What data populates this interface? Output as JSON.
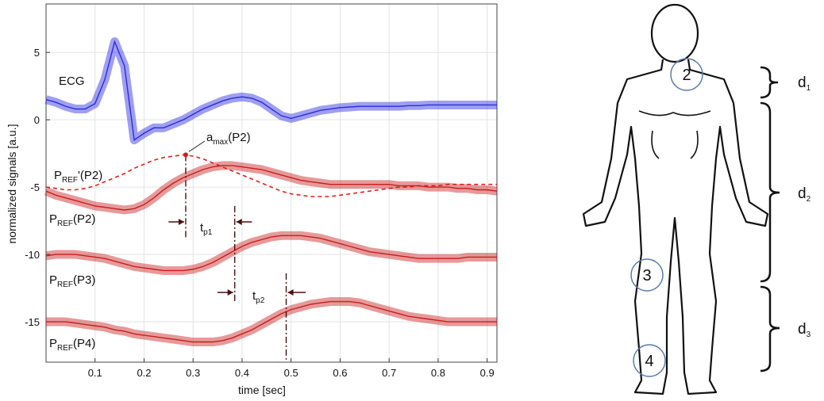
{
  "chart_data": {
    "type": "line",
    "x_label": "time [sec]",
    "y_label": "normalized signals [a.u.]",
    "x": [
      0,
      0.02,
      0.04,
      0.06,
      0.08,
      0.1,
      0.12,
      0.14,
      0.16,
      0.18,
      0.2,
      0.22,
      0.24,
      0.26,
      0.28,
      0.3,
      0.32,
      0.34,
      0.36,
      0.38,
      0.4,
      0.42,
      0.44,
      0.46,
      0.48,
      0.5,
      0.52,
      0.54,
      0.56,
      0.58,
      0.6,
      0.62,
      0.64,
      0.66,
      0.68,
      0.7,
      0.72,
      0.74,
      0.76,
      0.78,
      0.8,
      0.82,
      0.84,
      0.86,
      0.88,
      0.9,
      0.92
    ],
    "series": [
      {
        "label_parts": [
          "ECG"
        ],
        "color": "#2b2be0",
        "band": true,
        "dash": false,
        "values": [
          1.5,
          1.3,
          1.0,
          0.8,
          0.8,
          1.2,
          3.0,
          5.8,
          4.0,
          -1.5,
          -1.0,
          -0.6,
          -0.6,
          -0.3,
          0.0,
          0.4,
          0.8,
          1.1,
          1.4,
          1.6,
          1.7,
          1.6,
          1.3,
          0.8,
          0.3,
          0.1,
          0.3,
          0.5,
          0.7,
          0.8,
          0.9,
          0.95,
          1.0,
          1.0,
          1.0,
          1.0,
          1.0,
          1.05,
          1.05,
          1.1,
          1.1,
          1.1,
          1.1,
          1.1,
          1.1,
          1.1,
          1.1
        ]
      },
      {
        "label_parts": [
          "P",
          "REF",
          "'(P2)"
        ],
        "color": "#e02020",
        "band": false,
        "dash": true,
        "values": [
          -5.0,
          -5.1,
          -5.2,
          -5.2,
          -5.1,
          -4.9,
          -4.6,
          -4.3,
          -4.0,
          -3.6,
          -3.3,
          -3.0,
          -2.8,
          -2.7,
          -2.6,
          -2.7,
          -2.9,
          -3.2,
          -3.5,
          -3.8,
          -4.1,
          -4.4,
          -4.7,
          -5.0,
          -5.3,
          -5.5,
          -5.6,
          -5.7,
          -5.7,
          -5.7,
          -5.6,
          -5.5,
          -5.4,
          -5.3,
          -5.2,
          -5.1,
          -5.0,
          -5.0,
          -4.9,
          -4.9,
          -4.9,
          -4.8,
          -4.8,
          -4.8,
          -4.8,
          -4.8,
          -4.8
        ]
      },
      {
        "label_parts": [
          "P",
          "REF",
          "(P2)"
        ],
        "color": "#c81e1e",
        "band": true,
        "dash": false,
        "values": [
          -5.3,
          -5.6,
          -5.8,
          -6.0,
          -6.2,
          -6.4,
          -6.5,
          -6.6,
          -6.7,
          -6.6,
          -6.3,
          -5.8,
          -5.2,
          -4.7,
          -4.3,
          -4.0,
          -3.7,
          -3.5,
          -3.4,
          -3.4,
          -3.5,
          -3.6,
          -3.7,
          -3.9,
          -4.1,
          -4.3,
          -4.5,
          -4.6,
          -4.7,
          -4.8,
          -4.8,
          -4.8,
          -4.8,
          -4.8,
          -4.8,
          -4.8,
          -4.9,
          -4.9,
          -4.9,
          -5.0,
          -5.0,
          -5.0,
          -5.1,
          -5.1,
          -5.2,
          -5.2,
          -5.3
        ]
      },
      {
        "label_parts": [
          "P",
          "REF",
          "(P3)"
        ],
        "color": "#c81e1e",
        "band": true,
        "dash": false,
        "values": [
          -10.1,
          -10.0,
          -10.0,
          -10.0,
          -10.1,
          -10.2,
          -10.3,
          -10.5,
          -10.7,
          -10.9,
          -11.0,
          -11.1,
          -11.2,
          -11.2,
          -11.2,
          -11.1,
          -10.9,
          -10.6,
          -10.2,
          -9.8,
          -9.4,
          -9.1,
          -8.9,
          -8.7,
          -8.6,
          -8.6,
          -8.6,
          -8.7,
          -8.8,
          -9.0,
          -9.2,
          -9.4,
          -9.6,
          -9.8,
          -9.9,
          -10.0,
          -10.1,
          -10.2,
          -10.3,
          -10.3,
          -10.3,
          -10.3,
          -10.3,
          -10.2,
          -10.2,
          -10.2,
          -10.2
        ]
      },
      {
        "label_parts": [
          "P",
          "REF",
          "(P4)"
        ],
        "color": "#c81e1e",
        "band": true,
        "dash": false,
        "values": [
          -15.0,
          -15.0,
          -15.0,
          -15.1,
          -15.2,
          -15.3,
          -15.4,
          -15.6,
          -15.7,
          -15.9,
          -16.0,
          -16.1,
          -16.2,
          -16.3,
          -16.4,
          -16.5,
          -16.5,
          -16.5,
          -16.4,
          -16.2,
          -15.9,
          -15.6,
          -15.2,
          -14.8,
          -14.4,
          -14.1,
          -13.9,
          -13.7,
          -13.6,
          -13.5,
          -13.5,
          -13.5,
          -13.6,
          -13.8,
          -14.0,
          -14.2,
          -14.4,
          -14.6,
          -14.7,
          -14.8,
          -14.9,
          -15.0,
          -15.0,
          -15.0,
          -15.0,
          -15.0,
          -15.0
        ]
      }
    ],
    "peak": {
      "label_parts": [
        "a",
        "max",
        "(P2)"
      ],
      "x": 0.285,
      "y": -2.6,
      "color": "#c81e1e"
    },
    "markers": [
      {
        "x": 0.285,
        "from": -2.6,
        "to": -8.8
      },
      {
        "x": 0.385,
        "from": -6.4,
        "to": -13.6
      },
      {
        "x": 0.49,
        "from": -11.4,
        "to": -18
      }
    ],
    "delays": [
      {
        "label_parts": [
          "t",
          "p1"
        ]
      },
      {
        "label_parts": [
          "t",
          "p2"
        ]
      }
    ],
    "xlim": [
      0,
      0.92
    ],
    "xticks": [
      0.1,
      0.2,
      0.3,
      0.4,
      0.5,
      0.6,
      0.7,
      0.8,
      0.9
    ],
    "ylim": [
      -18,
      8.6
    ],
    "yticks": [
      -15,
      -10,
      -5,
      0,
      5
    ],
    "grid": true
  },
  "diagram": {
    "sites": [
      "2",
      "3",
      "4"
    ],
    "distances": [
      [
        "d",
        "1"
      ],
      [
        "d",
        "2"
      ],
      [
        "d",
        "3"
      ]
    ]
  }
}
